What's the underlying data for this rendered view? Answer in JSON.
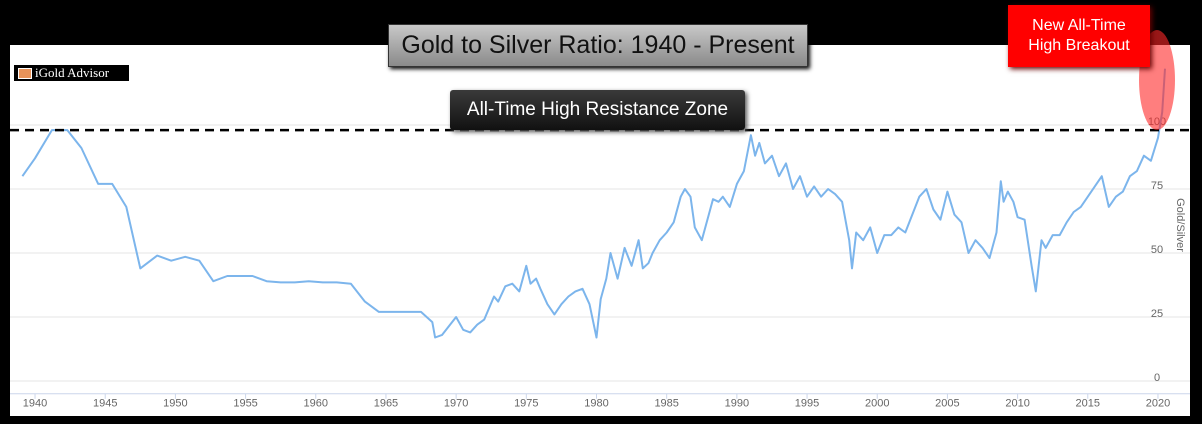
{
  "chart_data": {
    "type": "line",
    "title": "Gold to Silver Ratio: 1940 - Present",
    "logo": "iGold Advisor",
    "annotations": [
      "All-Time High Resistance Zone",
      "New All-Time High Breakout"
    ],
    "ylabel": "Gold/Silver",
    "color": "#7cb5ec",
    "resistance": 98,
    "grid": true,
    "xlim": [
      1939,
      2021
    ],
    "xticks": [
      1940,
      1945,
      1950,
      1955,
      1960,
      1965,
      1970,
      1975,
      1980,
      1985,
      1990,
      1995,
      2000,
      2005,
      2010,
      2015,
      2020
    ],
    "ylim": [
      -5,
      130
    ],
    "yticks": [
      0,
      25,
      50,
      75,
      100
    ],
    "x": [
      1939.1,
      1940,
      1941.2,
      1942.3,
      1943.3,
      1944.5,
      1945.5,
      1946.5,
      1947.5,
      1948.7,
      1949.7,
      1950.7,
      1951.7,
      1952.7,
      1953.7,
      1955.5,
      1956.5,
      1957.5,
      1958.5,
      1959.5,
      1960.5,
      1961.5,
      1962.5,
      1963.5,
      1964.5,
      1966,
      1967.5,
      1968.3,
      1968.5,
      1969,
      1970,
      1970.5,
      1971,
      1971.5,
      1972,
      1972.7,
      1973,
      1973.5,
      1974,
      1974.5,
      1975,
      1975.3,
      1975.7,
      1976,
      1976.5,
      1977,
      1977.5,
      1978,
      1978.5,
      1979,
      1979.5,
      1980,
      1980.3,
      1980.7,
      1981,
      1981.5,
      1982,
      1982.5,
      1983,
      1983.3,
      1983.7,
      1984,
      1984.5,
      1985,
      1985.5,
      1986,
      1986.3,
      1986.7,
      1987,
      1987.5,
      1988,
      1988.3,
      1988.7,
      1989,
      1989.5,
      1990,
      1990.5,
      1991,
      1991.3,
      1991.6,
      1992,
      1992.5,
      1993,
      1993.5,
      1994,
      1994.5,
      1995,
      1995.5,
      1996,
      1996.5,
      1997,
      1997.5,
      1998,
      1998.2,
      1998.5,
      1999,
      1999.5,
      2000,
      2000.5,
      2001,
      2001.5,
      2002,
      2002.5,
      2003,
      2003.5,
      2004,
      2004.5,
      2005,
      2005.5,
      2006,
      2006.5,
      2007,
      2007.5,
      2008,
      2008.5,
      2008.8,
      2009,
      2009.3,
      2009.7,
      2010,
      2010.5,
      2011,
      2011.3,
      2011.7,
      2012,
      2012.5,
      2013,
      2013.5,
      2014,
      2014.5,
      2015,
      2015.5,
      2016,
      2016.5,
      2017,
      2017.5,
      2018,
      2018.5,
      2019,
      2019.5,
      2020,
      2020.3,
      2020.5
    ],
    "values": [
      80,
      87,
      98,
      98,
      91,
      77,
      77,
      68,
      44,
      49,
      47,
      48.5,
      47,
      39,
      41,
      41,
      39,
      38.5,
      38.5,
      39,
      38.5,
      38.5,
      38,
      31,
      27,
      27,
      27,
      23,
      17,
      18,
      25,
      20,
      19,
      22,
      24,
      33,
      31,
      37,
      38,
      35,
      45,
      38,
      40,
      36,
      30,
      26,
      30,
      33,
      35,
      36,
      30,
      17,
      32,
      40,
      50,
      40,
      52,
      45,
      55,
      44,
      46,
      50,
      55,
      58,
      62,
      72,
      75,
      72,
      60,
      55,
      65,
      71,
      70,
      72,
      68,
      77,
      82,
      96,
      88,
      93,
      85,
      88,
      80,
      85,
      75,
      80,
      72,
      76,
      72,
      75,
      73,
      70,
      55,
      44,
      58,
      55,
      60,
      50,
      57,
      57,
      60,
      58,
      65,
      72,
      75,
      67,
      63,
      74,
      65,
      62,
      50,
      55,
      52,
      48,
      58,
      78,
      70,
      74,
      70,
      64,
      63,
      45,
      35,
      55,
      52,
      57,
      57,
      62,
      66,
      68,
      72,
      76,
      80,
      68,
      72,
      74,
      80,
      82,
      88,
      86,
      95,
      105,
      122
    ]
  }
}
